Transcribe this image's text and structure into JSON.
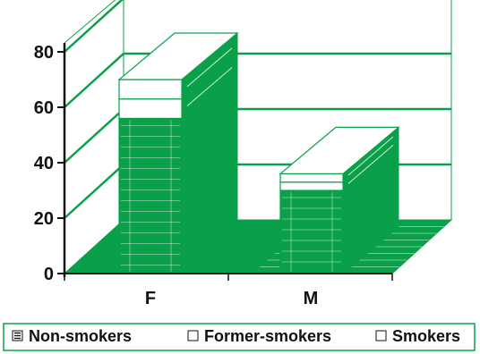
{
  "chart_data": {
    "type": "bar",
    "stacked": true,
    "three_d": true,
    "categories": [
      "F",
      "M"
    ],
    "series": [
      {
        "name": "Non-smokers",
        "values": [
          56,
          30
        ],
        "style": "hatched"
      },
      {
        "name": "Former-smokers",
        "values": [
          7,
          3
        ],
        "style": "open"
      },
      {
        "name": "Smokers",
        "values": [
          7,
          3
        ],
        "style": "open"
      }
    ],
    "yticks": [
      0,
      20,
      40,
      60,
      80
    ],
    "ylim": [
      0,
      80
    ],
    "title": "",
    "xlabel": "",
    "ylabel": "",
    "grid": true,
    "legend_position": "bottom",
    "colors": {
      "fill": "#0aa04a",
      "dark": "#078a3d",
      "line": "#0aa04a",
      "open": "#ffffff",
      "text": "#111111"
    }
  }
}
